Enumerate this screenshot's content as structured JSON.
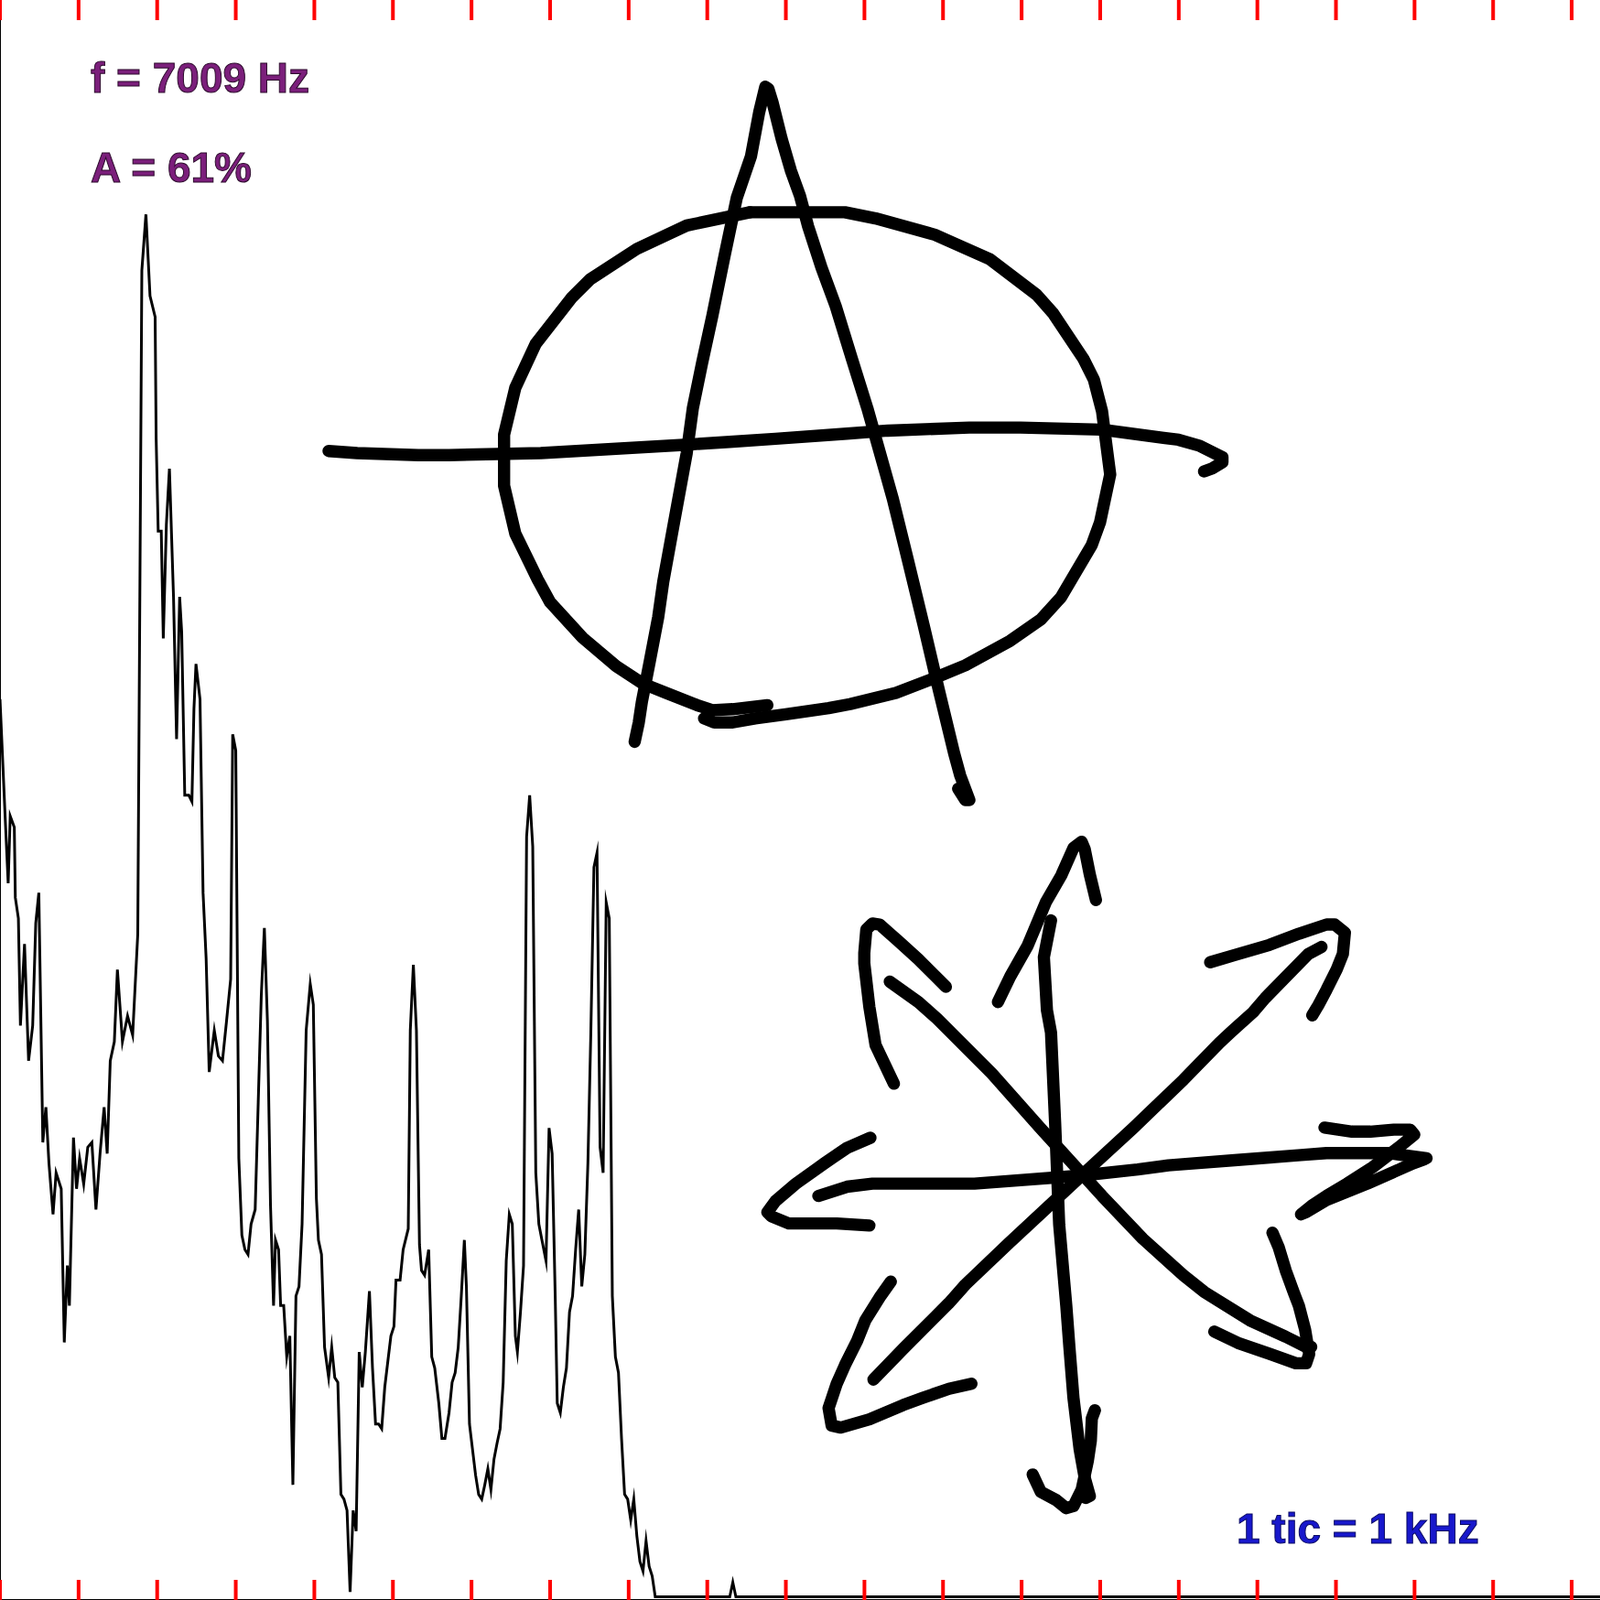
{
  "chart_data": {
    "type": "line",
    "annotations": [
      "f = 7009 Hz",
      "A = 61%",
      "1 tic = 1 kHz"
    ],
    "x": [
      0,
      0.065,
      0.104,
      0.13,
      0.182,
      0.195,
      0.234,
      0.26,
      0.312,
      0.364,
      0.416,
      0.455,
      0.494,
      0.545,
      0.584,
      0.623,
      0.675,
      0.714,
      0.779,
      0.818,
      0.857,
      0.883,
      0.935,
      0.974,
      1.013,
      1.065,
      1.117,
      1.169,
      1.221,
      1.273,
      1.325,
      1.364,
      1.403,
      1.455,
      1.494,
      1.558,
      1.623,
      1.688,
      1.753,
      1.805,
      1.857,
      1.909,
      1.974,
      1.987,
      2.013,
      2.052,
      2.078,
      2.117,
      2.156,
      2.208,
      2.247,
      2.286,
      2.312,
      2.351,
      2.403,
      2.442,
      2.468,
      2.494,
      2.545,
      2.584,
      2.623,
      2.662,
      2.727,
      2.779,
      2.831,
      2.883,
      2.935,
      2.961,
      3.0,
      3.039,
      3.078,
      3.117,
      3.156,
      3.195,
      3.247,
      3.286,
      3.325,
      3.364,
      3.403,
      3.442,
      3.481,
      3.506,
      3.545,
      3.571,
      3.61,
      3.649,
      3.688,
      3.727,
      3.766,
      3.805,
      3.844,
      3.896,
      3.948,
      3.987,
      4.026,
      4.052,
      4.091,
      4.13,
      4.182,
      4.221,
      4.26,
      4.299,
      4.338,
      4.377,
      4.416,
      4.455,
      4.494,
      4.532,
      4.571,
      4.61,
      4.649,
      4.701,
      4.74,
      4.779,
      4.818,
      4.857,
      4.896,
      4.935,
      4.974,
      5.013,
      5.039,
      5.091,
      5.13,
      5.195,
      5.221,
      5.26,
      5.299,
      5.338,
      5.364,
      5.403,
      5.455,
      5.494,
      5.532,
      5.584,
      5.623,
      5.662,
      5.714,
      5.753,
      5.792,
      5.831,
      5.87,
      5.909,
      5.935,
      5.974,
      6.013,
      6.052,
      6.091,
      6.13,
      6.169,
      6.208,
      6.247,
      6.286,
      6.325,
      6.364,
      6.403,
      6.442,
      6.481,
      6.519,
      6.558,
      6.584,
      6.623,
      6.662,
      6.701,
      6.74,
      6.779,
      6.818,
      6.857,
      6.896,
      6.948,
      6.987,
      7.026,
      7.065,
      7.091,
      7.13,
      7.169,
      7.208,
      7.247,
      7.286,
      7.325,
      7.364,
      7.403,
      7.442,
      7.481,
      7.519,
      7.558,
      7.597,
      7.636,
      7.675,
      7.714,
      7.753,
      7.792,
      7.831,
      7.87,
      7.909,
      7.948,
      7.987,
      8.026,
      8.065,
      8.104,
      8.143,
      8.182,
      8.221,
      8.26,
      8.299,
      8.338,
      9.286,
      9.325,
      9.364,
      20.36
    ],
    "values": [
      56.3,
      49.0,
      44.8,
      49.0,
      48.3,
      43.9,
      42.6,
      35.9,
      41.0,
      33.7,
      35.9,
      42.3,
      44.2,
      28.6,
      30.8,
      27.3,
      24.1,
      26.7,
      25.7,
      16.1,
      20.9,
      18.4,
      28.9,
      25.7,
      27.6,
      26.0,
      28.3,
      28.6,
      24.4,
      27.9,
      30.8,
      27.9,
      33.7,
      34.9,
      39.4,
      34.9,
      36.5,
      35.3,
      41.6,
      83.1,
      86.6,
      81.5,
      80.2,
      72.6,
      66.8,
      66.8,
      60.1,
      67.2,
      70.7,
      62.7,
      53.8,
      62.7,
      60.5,
      50.3,
      50.3,
      49.9,
      55.7,
      58.5,
      56.3,
      44.2,
      40.1,
      33.0,
      35.6,
      34.0,
      33.7,
      36.2,
      38.8,
      54.1,
      53.1,
      27.6,
      22.8,
      21.9,
      21.6,
      23.5,
      24.4,
      31.1,
      37.8,
      42.0,
      36.2,
      24.7,
      18.4,
      22.5,
      21.9,
      18.4,
      18.4,
      15.2,
      16.5,
      7.2,
      19.0,
      19.6,
      23.5,
      35.6,
      38.5,
      37.2,
      25.1,
      22.5,
      21.6,
      15.8,
      13.9,
      15.8,
      13.9,
      13.6,
      6.6,
      6.3,
      5.6,
      0.5,
      5.6,
      4.3,
      15.5,
      13.3,
      15.5,
      19.3,
      14.5,
      11.0,
      11.0,
      10.7,
      13.3,
      14.9,
      16.5,
      17.1,
      20.0,
      20.0,
      21.9,
      23.2,
      35.6,
      39.7,
      35.6,
      22.2,
      20.6,
      20.3,
      21.9,
      15.2,
      14.5,
      12.3,
      10.1,
      10.1,
      11.7,
      13.6,
      14.2,
      15.8,
      19.0,
      22.5,
      19.6,
      11.0,
      9.4,
      7.8,
      6.6,
      6.3,
      7.2,
      8.2,
      6.9,
      8.8,
      9.8,
      10.7,
      13.6,
      21.2,
      24.1,
      23.5,
      16.5,
      15.5,
      18.0,
      20.9,
      47.7,
      50.3,
      47.1,
      26.7,
      23.5,
      22.5,
      21.2,
      29.5,
      27.9,
      19.0,
      12.3,
      11.7,
      13.3,
      14.5,
      18.0,
      19.0,
      21.9,
      24.4,
      19.6,
      21.6,
      27.3,
      35.6,
      45.8,
      46.7,
      28.3,
      26.7,
      43.6,
      42.6,
      19.0,
      15.2,
      14.2,
      10.1,
      6.6,
      6.3,
      5.0,
      6.3,
      4.0,
      2.4,
      1.8,
      3.7,
      2.1,
      1.5,
      0.2,
      0.2,
      1.1,
      0.2,
      0.2
    ],
    "color": "#000000",
    "xlim": [
      0,
      20.36
    ],
    "xticks": [
      0,
      1,
      2,
      3,
      4,
      5,
      6,
      7,
      8,
      9,
      10,
      11,
      12,
      13,
      14,
      15,
      16,
      17,
      18,
      19,
      20
    ],
    "ylim": [
      0,
      100
    ],
    "grid": false,
    "tick_labels": false
  }
}
